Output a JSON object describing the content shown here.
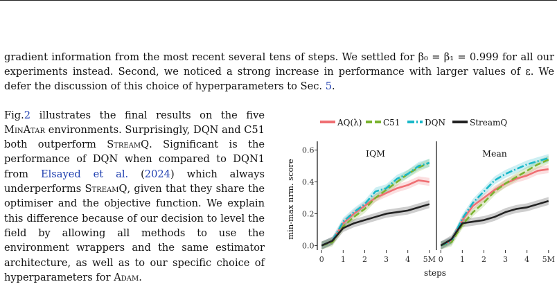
{
  "paper": {
    "para1": [
      {
        "t": "gradient information from the most recent several tens of steps. We settled for β₀ = β₁ = 0.999 for all our experiments instead. Second, we noticed a strong increase in performance with larger values of ε. We defer the discussion of this choice of hyperparameters to Sec. "
      },
      {
        "t": "5",
        "link": true
      },
      {
        "t": "."
      }
    ],
    "para2": [
      {
        "t": "Fig.",
        "sc": false
      },
      {
        "t": "2",
        "link": true
      },
      {
        "t": " illustrates the final results on the five "
      },
      {
        "t": "MinAtar",
        "sc": true
      },
      {
        "t": " environments. Surprisingly, DQN and C51 both outperform "
      },
      {
        "t": "StreamQ",
        "sc": true
      },
      {
        "t": ". Significant is the performance of DQN when compared to DQN1 from "
      },
      {
        "t": "Elsayed et al.",
        "link": true
      },
      {
        "t": " ("
      },
      {
        "t": "2024",
        "link": true
      },
      {
        "t": ") which always underperforms "
      },
      {
        "t": "StreamQ",
        "sc": true
      },
      {
        "t": ", given that they share the optimiser and the objective function. We explain this difference because of our decision to level the field by allowing all methods to use the environment wrappers and the same estimator architecture, as well as to our specific choice of hyperparameters for "
      },
      {
        "t": "Adam",
        "sc": true
      },
      {
        "t": "."
      }
    ]
  },
  "chart_data": {
    "type": "line",
    "panels": [
      "IQM",
      "Mean"
    ],
    "ylabel": "min-max nrm. score",
    "xlabel": "steps",
    "xticks": [
      "0",
      "1",
      "2",
      "3",
      "4",
      "5M"
    ],
    "yticks": [
      "0.0",
      "0.2",
      "0.4",
      "0.6"
    ],
    "ylim": [
      -0.02,
      0.62
    ],
    "xlim": [
      -0.2,
      5.2
    ],
    "legend_position": "top",
    "x": [
      0,
      0.5,
      1,
      1.5,
      2,
      2.5,
      3,
      3.5,
      4,
      4.5,
      5
    ],
    "series": [
      {
        "name": "AQ(λ)",
        "color": "#ef6f73",
        "dash": "",
        "iqm": [
          0.0,
          0.03,
          0.14,
          0.2,
          0.25,
          0.3,
          0.33,
          0.36,
          0.38,
          0.41,
          0.4
        ],
        "mean": [
          0.0,
          0.03,
          0.16,
          0.25,
          0.3,
          0.35,
          0.39,
          0.42,
          0.44,
          0.47,
          0.48
        ]
      },
      {
        "name": "C51",
        "color": "#7ab32f",
        "dash": "9,4",
        "iqm": [
          0.0,
          0.02,
          0.12,
          0.18,
          0.23,
          0.3,
          0.35,
          0.4,
          0.45,
          0.49,
          0.52
        ],
        "mean": [
          0.0,
          0.02,
          0.13,
          0.21,
          0.27,
          0.34,
          0.39,
          0.43,
          0.47,
          0.51,
          0.54
        ]
      },
      {
        "name": "DQN",
        "color": "#19b8c8",
        "dash": "10,3,2,3",
        "iqm": [
          0.0,
          0.03,
          0.15,
          0.21,
          0.26,
          0.34,
          0.36,
          0.42,
          0.45,
          0.5,
          0.52
        ],
        "mean": [
          0.0,
          0.03,
          0.17,
          0.27,
          0.34,
          0.41,
          0.45,
          0.48,
          0.51,
          0.53,
          0.55
        ]
      },
      {
        "name": "StreamQ",
        "color": "#222222",
        "dash": "",
        "iqm": [
          0.0,
          0.03,
          0.11,
          0.14,
          0.16,
          0.18,
          0.2,
          0.21,
          0.22,
          0.24,
          0.26
        ],
        "mean": [
          0.0,
          0.04,
          0.14,
          0.15,
          0.16,
          0.18,
          0.21,
          0.23,
          0.24,
          0.26,
          0.28
        ]
      }
    ]
  }
}
